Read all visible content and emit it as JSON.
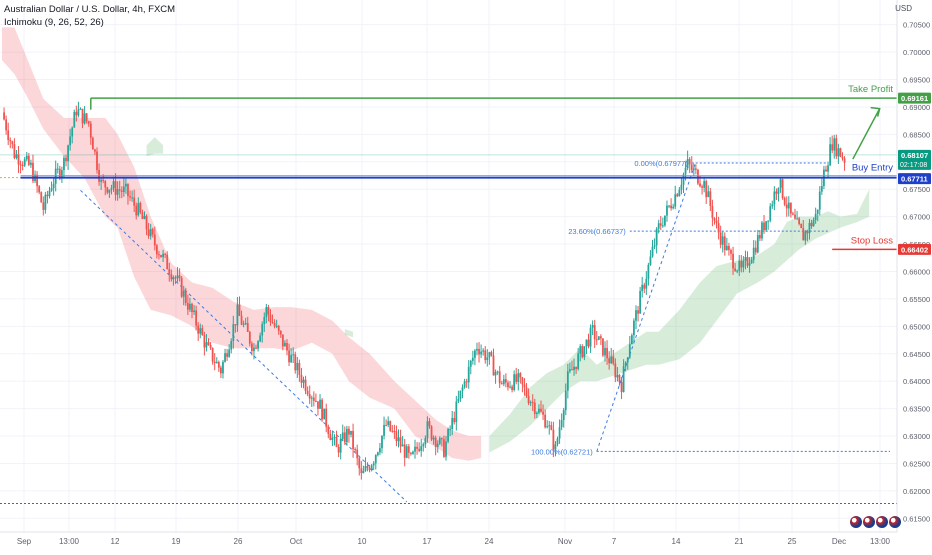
{
  "header": {
    "title": "Australian Dollar / U.S. Dollar, 4h, FXCM",
    "indicator": "Ichimoku (9, 26, 52, 26)",
    "currency": "USD"
  },
  "chart_data": {
    "type": "candlestick",
    "y_axis": {
      "ylim": [
        0.6125,
        0.7095
      ],
      "ticks": [
        "0.70500",
        "0.70000",
        "0.69500",
        "0.69000",
        "0.68500",
        "0.68000",
        "0.67500",
        "0.67000",
        "0.66500",
        "0.66000",
        "0.65500",
        "0.65000",
        "0.64500",
        "0.64000",
        "0.63500",
        "0.63000",
        "0.62500",
        "0.62000",
        "0.61500"
      ]
    },
    "x_axis": {
      "ticks": [
        "Sep",
        "13:00",
        "12",
        "19",
        "26",
        "Oct",
        "10",
        "17",
        "24",
        "Nov",
        "7",
        "14",
        "21",
        "25",
        "Dec",
        "13:00"
      ]
    },
    "price_path": [
      [
        0,
        0.689
      ],
      [
        6,
        0.6815
      ],
      [
        14,
        0.679
      ],
      [
        20,
        0.6715
      ],
      [
        24,
        0.676
      ],
      [
        30,
        0.68
      ],
      [
        36,
        0.6895
      ],
      [
        42,
        0.687
      ],
      [
        48,
        0.676
      ],
      [
        60,
        0.6745
      ],
      [
        66,
        0.671
      ],
      [
        74,
        0.665
      ],
      [
        86,
        0.6575
      ],
      [
        100,
        0.6455
      ],
      [
        106,
        0.642
      ],
      [
        114,
        0.6525
      ],
      [
        122,
        0.646
      ],
      [
        128,
        0.653
      ],
      [
        136,
        0.647
      ],
      [
        146,
        0.64
      ],
      [
        154,
        0.6355
      ],
      [
        162,
        0.6275
      ],
      [
        168,
        0.631
      ],
      [
        174,
        0.6225
      ],
      [
        180,
        0.626
      ],
      [
        186,
        0.632
      ],
      [
        192,
        0.629
      ],
      [
        198,
        0.6255
      ],
      [
        206,
        0.6315
      ],
      [
        214,
        0.6275
      ],
      [
        222,
        0.6375
      ],
      [
        230,
        0.6465
      ],
      [
        236,
        0.644
      ],
      [
        242,
        0.6395
      ],
      [
        250,
        0.64
      ],
      [
        258,
        0.6355
      ],
      [
        264,
        0.6325
      ],
      [
        268,
        0.6275
      ],
      [
        274,
        0.6405
      ],
      [
        280,
        0.645
      ],
      [
        286,
        0.649
      ],
      [
        294,
        0.644
      ],
      [
        300,
        0.6395
      ],
      [
        304,
        0.6475
      ],
      [
        310,
        0.6565
      ],
      [
        318,
        0.668
      ],
      [
        326,
        0.674
      ],
      [
        332,
        0.6795
      ],
      [
        340,
        0.676
      ],
      [
        346,
        0.668
      ],
      [
        352,
        0.663
      ],
      [
        358,
        0.66
      ],
      [
        364,
        0.664
      ],
      [
        370,
        0.6695
      ],
      [
        376,
        0.6765
      ],
      [
        382,
        0.67
      ],
      [
        388,
        0.6665
      ],
      [
        394,
        0.67
      ],
      [
        398,
        0.678
      ],
      [
        402,
        0.6835
      ],
      [
        408,
        0.6805
      ]
    ],
    "cloud_red": [
      [
        0,
        0.7045,
        0.6985
      ],
      [
        6,
        0.7045,
        0.696
      ],
      [
        12,
        0.699,
        0.692
      ],
      [
        20,
        0.6915,
        0.686
      ],
      [
        30,
        0.688,
        0.681
      ],
      [
        40,
        0.688,
        0.677
      ],
      [
        50,
        0.688,
        0.67
      ],
      [
        56,
        0.685,
        0.668
      ],
      [
        64,
        0.679,
        0.659
      ],
      [
        72,
        0.67,
        0.653
      ],
      [
        82,
        0.6615,
        0.652
      ],
      [
        92,
        0.658,
        0.65
      ],
      [
        102,
        0.657,
        0.647
      ],
      [
        112,
        0.6545,
        0.646
      ],
      [
        122,
        0.653,
        0.646
      ],
      [
        132,
        0.6535,
        0.646
      ],
      [
        140,
        0.6535,
        0.6455
      ],
      [
        150,
        0.653,
        0.647
      ],
      [
        160,
        0.651,
        0.645
      ],
      [
        168,
        0.648,
        0.64
      ],
      [
        178,
        0.645,
        0.637
      ],
      [
        190,
        0.64,
        0.635
      ],
      [
        200,
        0.6365,
        0.63
      ],
      [
        210,
        0.633,
        0.628
      ],
      [
        218,
        0.631,
        0.626
      ],
      [
        226,
        0.63,
        0.6255
      ],
      [
        232,
        0.63,
        0.626
      ]
    ],
    "cloud_green": [
      [
        70,
        0.683,
        0.681
      ],
      [
        74,
        0.6845,
        0.6815
      ],
      [
        78,
        0.683,
        0.6815
      ],
      [
        166,
        0.6495,
        0.6485
      ],
      [
        170,
        0.649,
        0.648
      ],
      [
        236,
        0.63,
        0.627
      ],
      [
        246,
        0.634,
        0.629
      ],
      [
        256,
        0.639,
        0.632
      ],
      [
        264,
        0.6415,
        0.635
      ],
      [
        272,
        0.643,
        0.638
      ],
      [
        280,
        0.646,
        0.64
      ],
      [
        288,
        0.643,
        0.64
      ],
      [
        296,
        0.645,
        0.641
      ],
      [
        304,
        0.647,
        0.642
      ],
      [
        312,
        0.649,
        0.643
      ],
      [
        318,
        0.649,
        0.643
      ],
      [
        328,
        0.653,
        0.644
      ],
      [
        338,
        0.658,
        0.647
      ],
      [
        346,
        0.661,
        0.651
      ],
      [
        356,
        0.662,
        0.656
      ],
      [
        366,
        0.663,
        0.658
      ],
      [
        374,
        0.665,
        0.66
      ],
      [
        380,
        0.669,
        0.662
      ],
      [
        386,
        0.67,
        0.664
      ],
      [
        394,
        0.67,
        0.666
      ],
      [
        400,
        0.671,
        0.667
      ],
      [
        406,
        0.67,
        0.668
      ],
      [
        414,
        0.6705,
        0.669
      ],
      [
        420,
        0.675,
        0.67
      ]
    ],
    "fibonacci": [
      {
        "label": "0.00%(0.67977)",
        "value": 0.67977
      },
      {
        "label": "23.60%(0.66737)",
        "value": 0.66737
      },
      {
        "label": "100.00%(0.62721)",
        "value": 0.62721
      }
    ],
    "trade_levels": [
      {
        "label": "Take Profit",
        "price": "0.69161",
        "value": 0.69161,
        "color": "#43a047"
      },
      {
        "label": "Buy Entry",
        "price": "0.67711",
        "value": 0.67711,
        "color": "#1e40c8"
      },
      {
        "label": "Stop Loss",
        "price": "0.66402",
        "value": 0.66402,
        "color": "#e53935"
      }
    ],
    "current_price": {
      "price": "0.68107",
      "countdown": "02:17:08",
      "value": 0.68107,
      "color": "#089981"
    },
    "other_levels": [
      {
        "name": "prev-close-dotted",
        "value": 0.67711
      },
      {
        "name": "bottom-dotted",
        "value": 0.6177
      }
    ],
    "colors": {
      "up": "#26a69a",
      "down": "#ef5350",
      "grid": "#f0f3fa",
      "trend": "#3d7be0"
    }
  }
}
